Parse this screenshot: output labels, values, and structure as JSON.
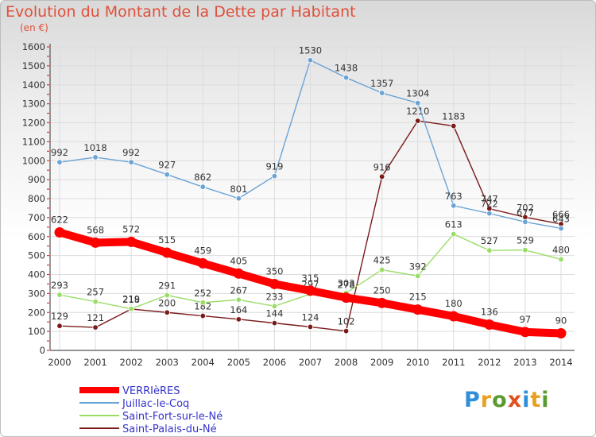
{
  "title": "Evolution du Montant de la Dette par Habitant",
  "subtitle": "(en €)",
  "logo_text": "Proxiti",
  "chart_data": {
    "type": "line",
    "title": "Evolution du Montant de la Dette par Habitant",
    "subtitle": "(en €)",
    "x": [
      2000,
      2001,
      2002,
      2003,
      2004,
      2005,
      2006,
      2007,
      2008,
      2009,
      2010,
      2011,
      2012,
      2013,
      2014
    ],
    "ylim": [
      0,
      1600
    ],
    "yticks": [
      0,
      100,
      200,
      300,
      400,
      500,
      600,
      700,
      800,
      900,
      1000,
      1100,
      1200,
      1300,
      1400,
      1500,
      1600
    ],
    "grid": true,
    "legend": "bottom-left",
    "series": [
      {
        "name": "VERRIèRES",
        "color": "#ff0000",
        "values": [
          622,
          568,
          572,
          515,
          459,
          405,
          350,
          315,
          278,
          250,
          215,
          180,
          136,
          97,
          90
        ]
      },
      {
        "name": "Juillac-le-Coq",
        "color": "#6aa3d6",
        "values": [
          992,
          1018,
          992,
          927,
          862,
          801,
          919,
          1530,
          1438,
          1357,
          1304,
          763,
          722,
          677,
          643
        ]
      },
      {
        "name": "Saint-Fort-sur-le-Né",
        "color": "#99dd66",
        "values": [
          293,
          257,
          219,
          291,
          252,
          267,
          233,
          297,
          303,
          425,
          392,
          613,
          527,
          529,
          480
        ]
      },
      {
        "name": "Saint-Palais-du-Né",
        "color": "#7a1a1a",
        "values": [
          129,
          121,
          218,
          200,
          182,
          164,
          144,
          124,
          102,
          916,
          1210,
          1183,
          747,
          702,
          666
        ]
      }
    ]
  }
}
